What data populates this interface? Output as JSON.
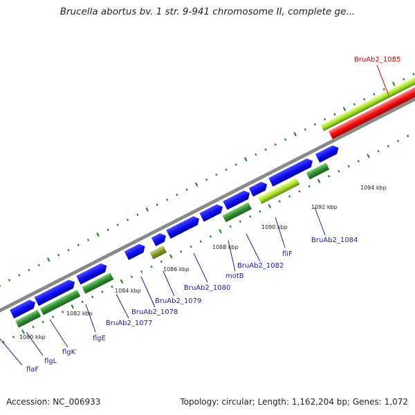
{
  "title": "Brucella abortus bv. 1 str. 9-941 chromosome II, complete ge...",
  "footer": {
    "accession": "Accession: NC_006933",
    "topology": "Topology: circular; Length: 1,162,204 bp; Genes: 1,072"
  },
  "scale_labels": [
    "1080 kbp",
    "1082 kbp",
    "1084 kbp",
    "1086 kbp",
    "1088 kbp",
    "1090 kbp",
    "1092 kbp",
    "1094 kbp"
  ],
  "gene_labels": [
    "flaF",
    "flgL",
    "flgK",
    "flgE",
    "BruAb2_1077",
    "BruAb2_1078",
    "BruAb2_1079",
    "BruAb2_1080",
    "motB",
    "BruAb2_1082",
    "fliF",
    "BruAb2_1084",
    "BruAb2_1085"
  ],
  "colors": {
    "forward_gene": "#1010ee",
    "cds": "#2f8f2f",
    "highlight_gene": "#ee1111",
    "highlight_cds": "#a8e030",
    "backbone": "#8a8a8a",
    "tick": "#1e7a1e",
    "label": "#1a1aaa",
    "label_highlight": "#cc0000"
  }
}
